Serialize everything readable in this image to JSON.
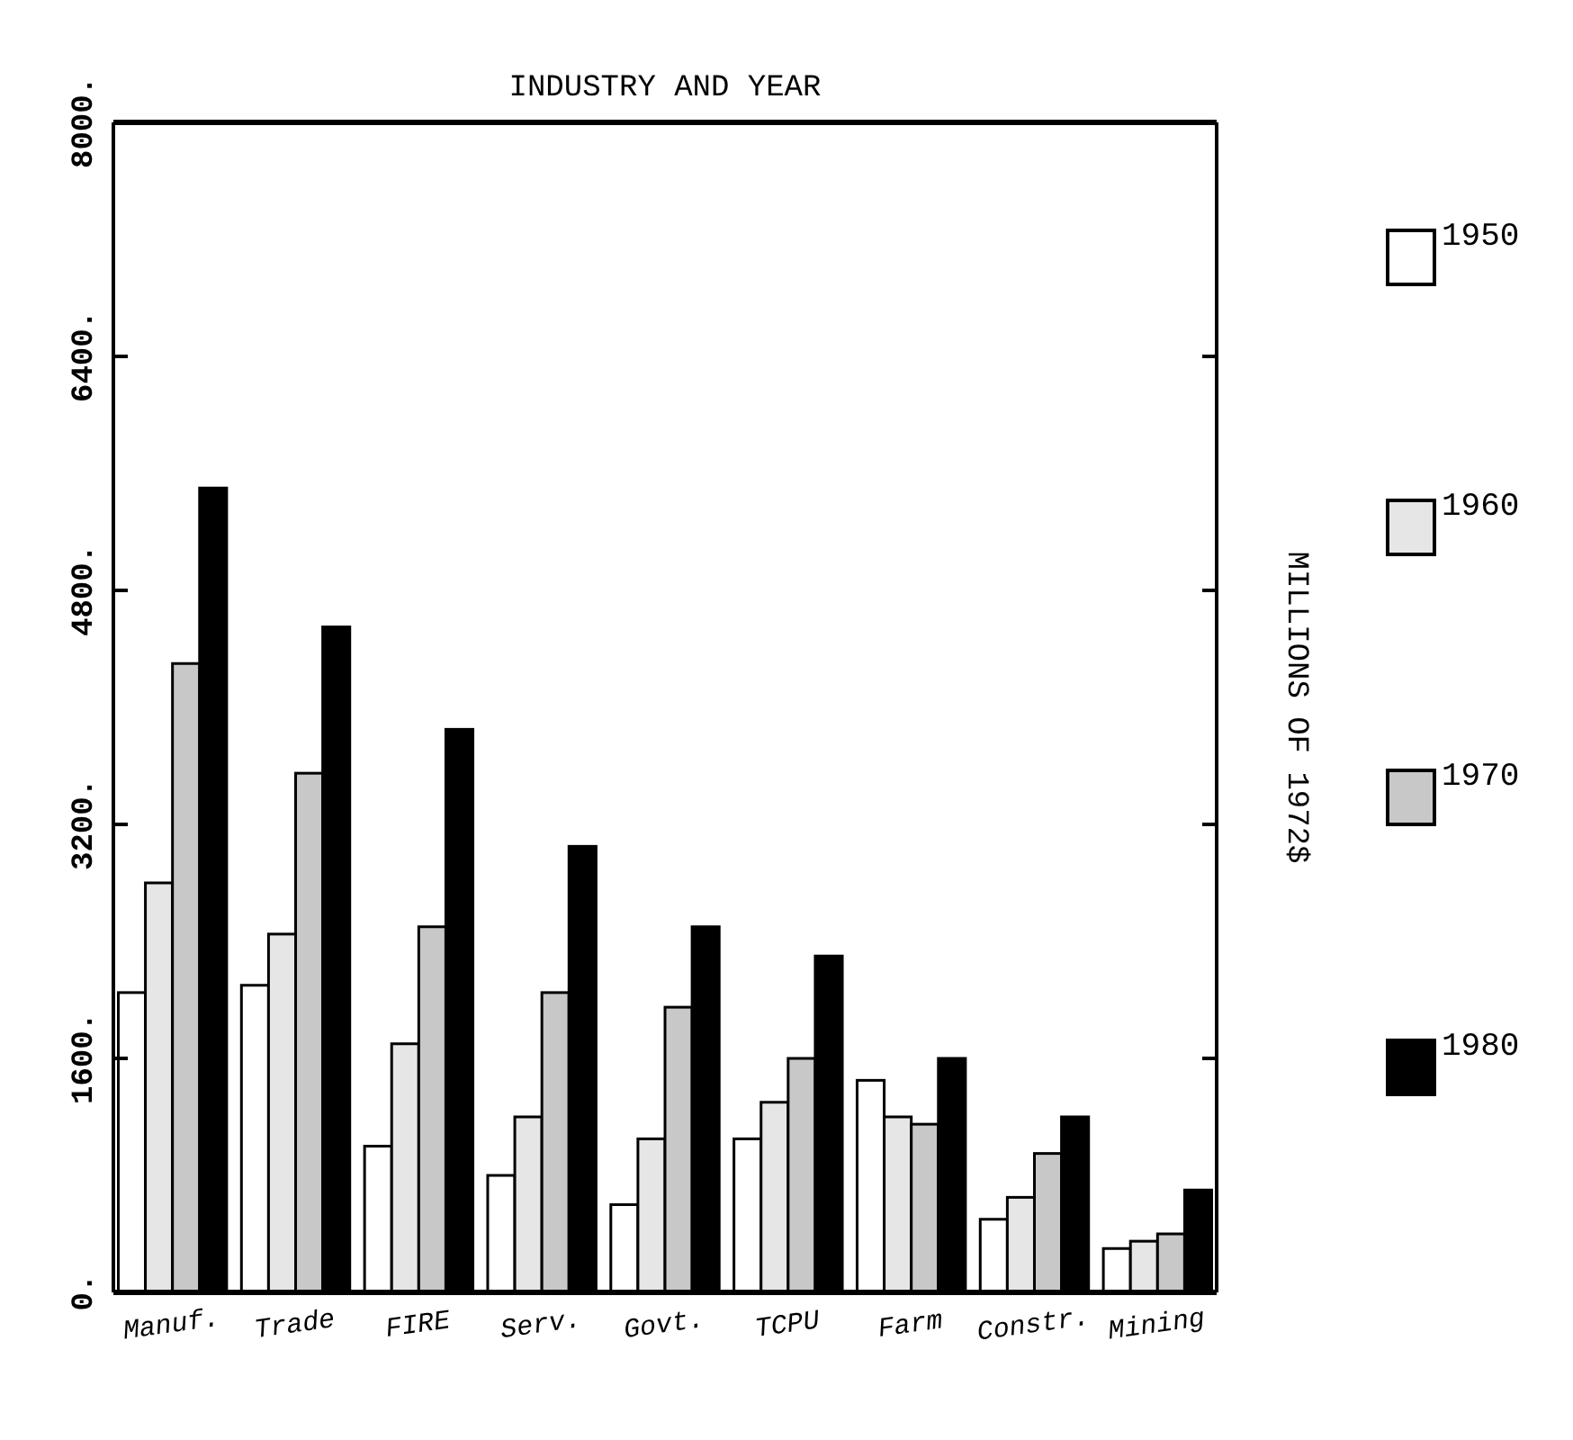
{
  "chart_data": {
    "type": "bar",
    "title": "INDUSTRY AND YEAR",
    "ylabel": "MILLIONS OF 1972$",
    "categories": [
      "Manuf.",
      "Trade",
      "FIRE",
      "Serv.",
      "Govt.",
      "TCPU",
      "Farm",
      "Constr.",
      "Mining"
    ],
    "series": [
      {
        "name": "1950",
        "color": "#ffffff",
        "values": [
          2050,
          2100,
          1000,
          800,
          600,
          1050,
          1450,
          500,
          300
        ]
      },
      {
        "name": "1960",
        "color": "#e6e6e6",
        "values": [
          2800,
          2450,
          1700,
          1200,
          1050,
          1300,
          1200,
          650,
          350
        ]
      },
      {
        "name": "1970",
        "color": "#c8c8c8",
        "values": [
          4300,
          3550,
          2500,
          2050,
          1950,
          1600,
          1150,
          950,
          400
        ]
      },
      {
        "name": "1980",
        "color": "#000000",
        "values": [
          5500,
          4550,
          3850,
          3050,
          2500,
          2300,
          1600,
          1200,
          700
        ]
      }
    ],
    "ylim": [
      0,
      8000
    ],
    "yticks": [
      {
        "value": 0,
        "label": "0."
      },
      {
        "value": 1600,
        "label": "1600."
      },
      {
        "value": 3200,
        "label": "3200."
      },
      {
        "value": 4800,
        "label": "4800."
      },
      {
        "value": 6400,
        "label": "6400."
      },
      {
        "value": 8000,
        "label": "8000."
      }
    ],
    "legend": "right",
    "grid": false
  }
}
